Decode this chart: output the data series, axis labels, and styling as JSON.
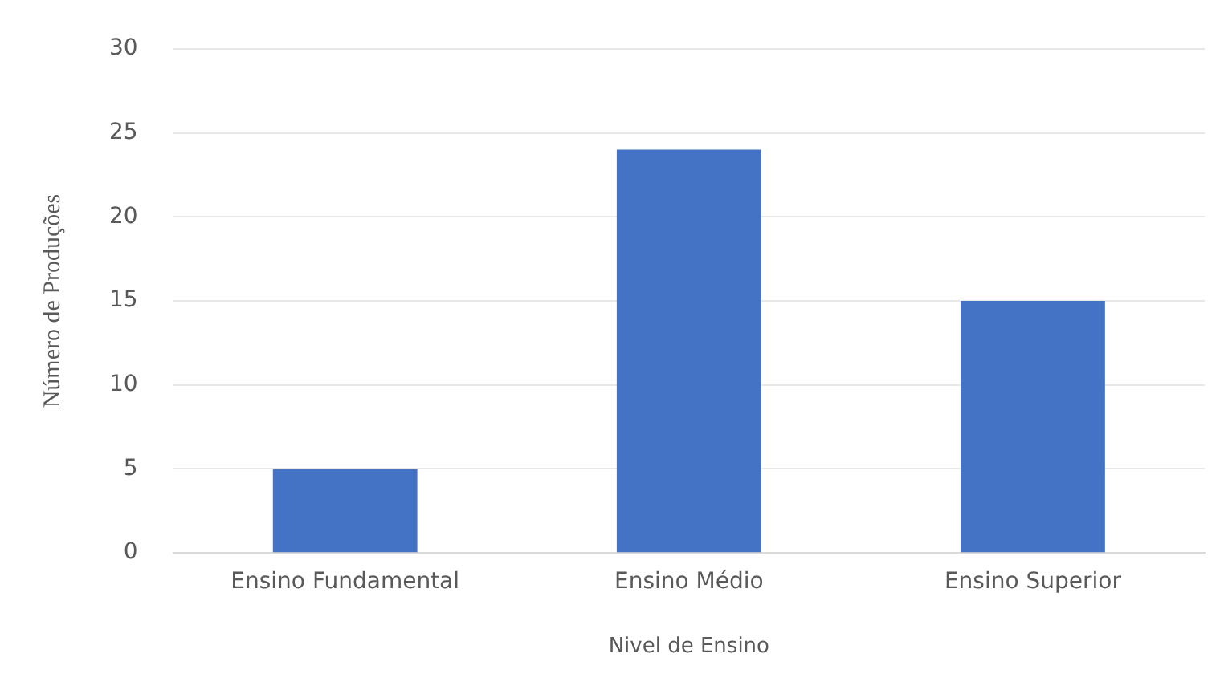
{
  "chart_data": {
    "type": "bar",
    "xlabel": "Nivel de Ensino",
    "ylabel": "Número de Produções",
    "categories": [
      "Ensino Fundamental",
      "Ensino Médio",
      "Ensino Superior"
    ],
    "values": [
      5,
      24,
      15
    ],
    "color": "#4472c4",
    "ylim": [
      0,
      30
    ],
    "yticks": [
      0,
      5,
      10,
      15,
      20,
      25,
      30
    ],
    "grid": "y",
    "legend": false
  }
}
